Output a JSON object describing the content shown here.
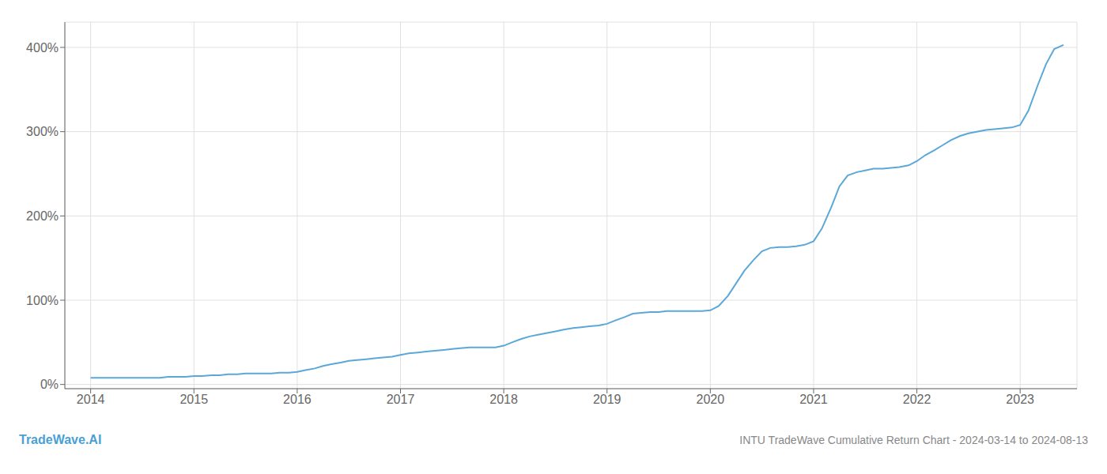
{
  "chart_data": {
    "type": "line",
    "title": "INTU TradeWave Cumulative Return Chart - 2024-03-14 to 2024-08-13",
    "annotations": [
      "TradeWave.AI"
    ],
    "color": "#5ba8d8",
    "grid": true,
    "x": [
      2014.0,
      2014.08,
      2014.17,
      2014.25,
      2014.33,
      2014.42,
      2014.5,
      2014.58,
      2014.67,
      2014.75,
      2014.83,
      2014.92,
      2015.0,
      2015.08,
      2015.17,
      2015.25,
      2015.33,
      2015.42,
      2015.5,
      2015.58,
      2015.67,
      2015.75,
      2015.83,
      2015.92,
      2016.0,
      2016.08,
      2016.17,
      2016.25,
      2016.33,
      2016.42,
      2016.5,
      2016.58,
      2016.67,
      2016.75,
      2016.83,
      2016.92,
      2017.0,
      2017.08,
      2017.17,
      2017.25,
      2017.33,
      2017.42,
      2017.5,
      2017.58,
      2017.67,
      2017.75,
      2017.83,
      2017.92,
      2018.0,
      2018.08,
      2018.17,
      2018.25,
      2018.33,
      2018.42,
      2018.5,
      2018.58,
      2018.67,
      2018.75,
      2018.83,
      2018.92,
      2019.0,
      2019.08,
      2019.17,
      2019.25,
      2019.33,
      2019.42,
      2019.5,
      2019.58,
      2019.67,
      2019.75,
      2019.83,
      2019.92,
      2020.0,
      2020.08,
      2020.17,
      2020.25,
      2020.33,
      2020.42,
      2020.5,
      2020.58,
      2020.67,
      2020.75,
      2020.83,
      2020.92,
      2021.0,
      2021.08,
      2021.17,
      2021.25,
      2021.33,
      2021.42,
      2021.5,
      2021.58,
      2021.67,
      2021.75,
      2021.83,
      2021.92,
      2022.0,
      2022.08,
      2022.17,
      2022.25,
      2022.33,
      2022.42,
      2022.5,
      2022.58,
      2022.67,
      2022.75,
      2022.83,
      2022.92,
      2023.0,
      2023.08,
      2023.17,
      2023.25,
      2023.33,
      2023.42
    ],
    "values": [
      8,
      8,
      8,
      8,
      8,
      8,
      8,
      8,
      8,
      9,
      9,
      9,
      10,
      10,
      11,
      11,
      12,
      12,
      13,
      13,
      13,
      13,
      14,
      14,
      15,
      17,
      19,
      22,
      24,
      26,
      28,
      29,
      30,
      31,
      32,
      33,
      35,
      37,
      38,
      39,
      40,
      41,
      42,
      43,
      44,
      44,
      44,
      44,
      46,
      50,
      54,
      57,
      59,
      61,
      63,
      65,
      67,
      68,
      69,
      70,
      72,
      76,
      80,
      84,
      85,
      86,
      86,
      87,
      87,
      87,
      87,
      87,
      88,
      93,
      105,
      120,
      135,
      148,
      158,
      162,
      163,
      163,
      164,
      166,
      170,
      185,
      210,
      235,
      248,
      252,
      254,
      256,
      256,
      257,
      258,
      260,
      265,
      272,
      278,
      284,
      290,
      295,
      298,
      300,
      302,
      303,
      304,
      305,
      308,
      325,
      355,
      380,
      398,
      403
    ],
    "xlim": [
      2013.75,
      2023.55
    ],
    "xticks": [
      2014,
      2015,
      2016,
      2017,
      2018,
      2019,
      2020,
      2021,
      2022,
      2023
    ],
    "ylim": [
      -5,
      430
    ],
    "yticks": [
      {
        "value": 0,
        "label": "0%"
      },
      {
        "value": 100,
        "label": "100%"
      },
      {
        "value": 200,
        "label": "200%"
      },
      {
        "value": 300,
        "label": "300%"
      },
      {
        "value": 400,
        "label": "400%"
      }
    ]
  }
}
